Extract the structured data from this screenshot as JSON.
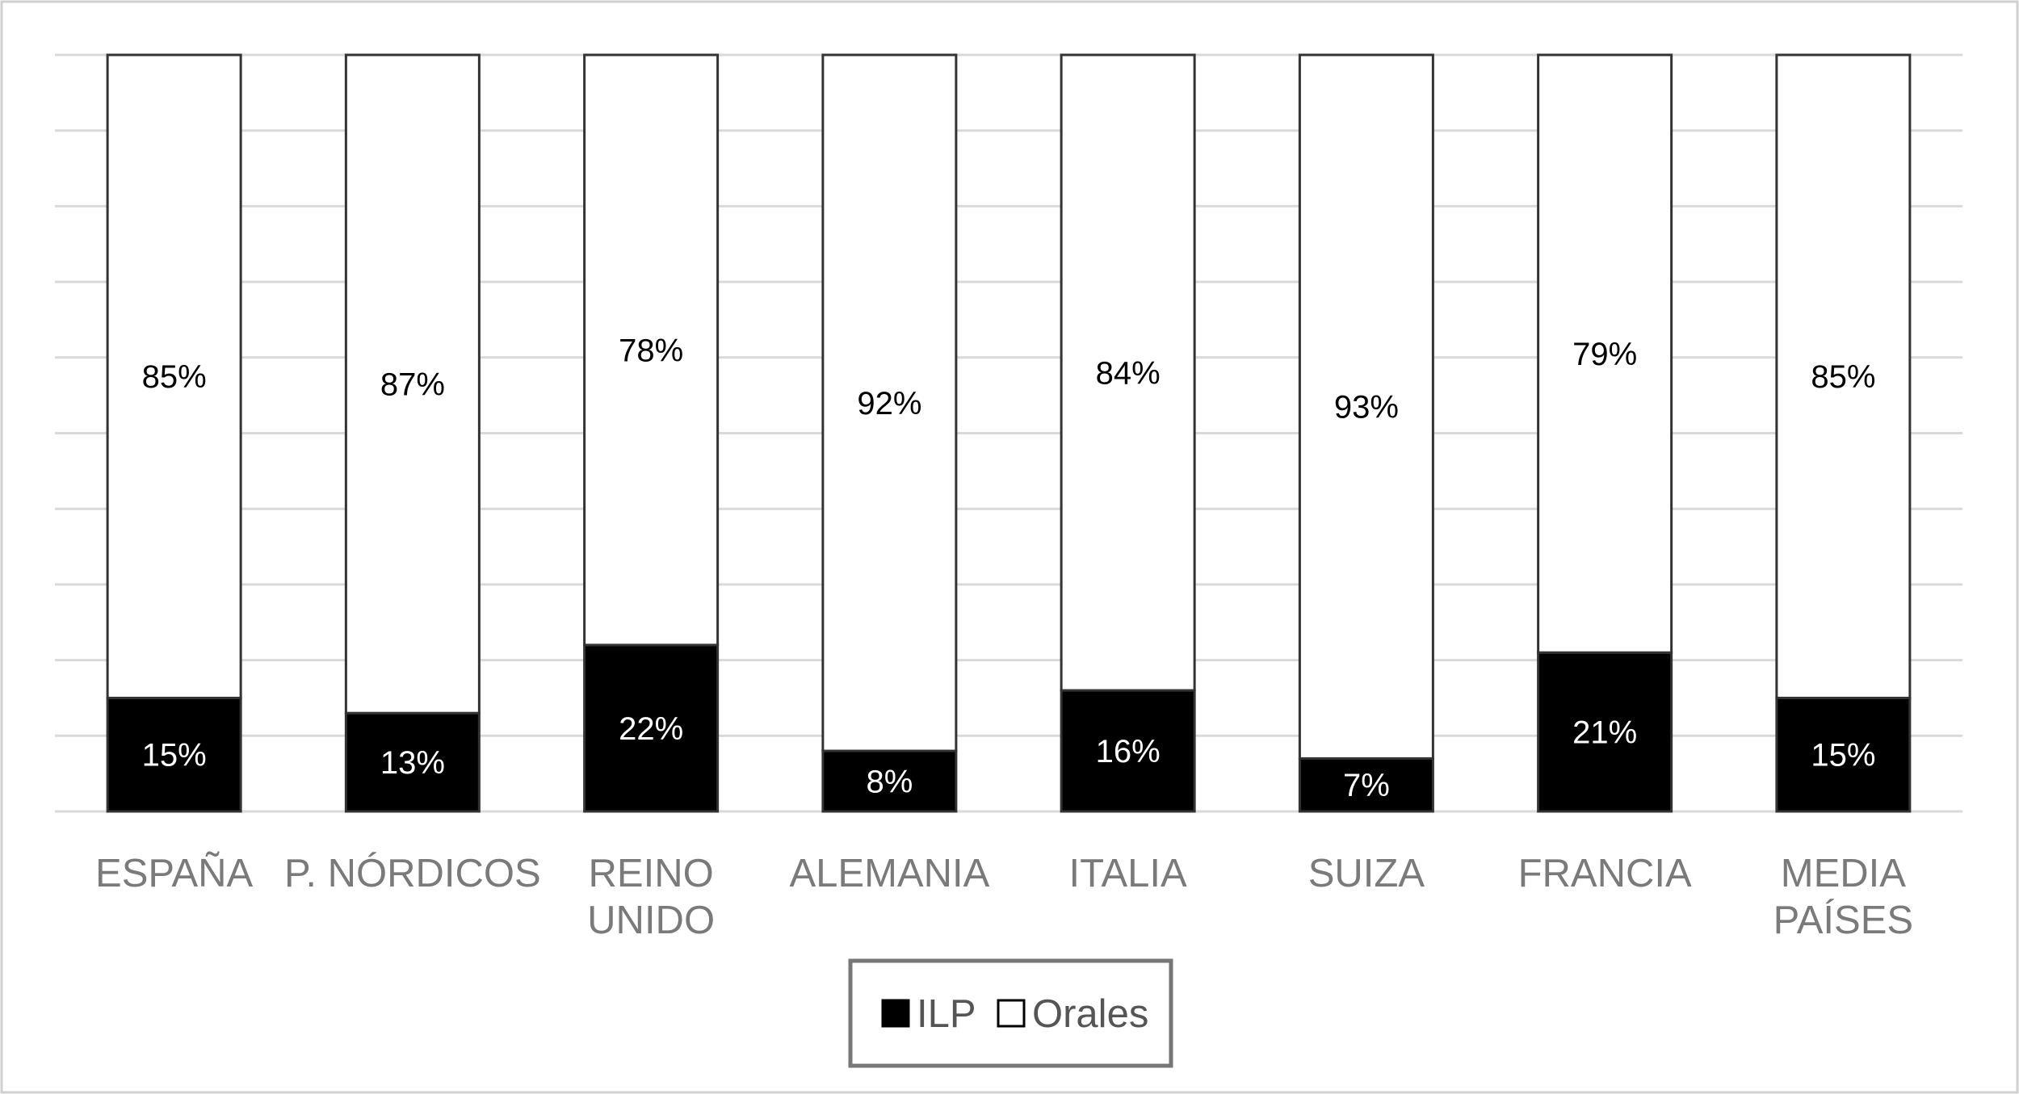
{
  "chart_data": {
    "type": "bar",
    "stacked": true,
    "percent": true,
    "categories": [
      [
        "ESPAÑA"
      ],
      [
        "P. NÓRDICOS"
      ],
      [
        "REINO",
        "UNIDO"
      ],
      [
        "ALEMANIA"
      ],
      [
        "ITALIA"
      ],
      [
        "SUIZA"
      ],
      [
        "FRANCIA"
      ],
      [
        "MEDIA",
        "PAÍSES"
      ]
    ],
    "series": [
      {
        "name": "ILP",
        "values": [
          15,
          13,
          22,
          8,
          16,
          7,
          21,
          15
        ],
        "labels": [
          "15%",
          "13%",
          "22%",
          "8%",
          "16%",
          "7%",
          "21%",
          "15%"
        ],
        "color": "#000000",
        "label_color": "#ffffff"
      },
      {
        "name": "Orales",
        "values": [
          85,
          87,
          78,
          92,
          84,
          93,
          79,
          85
        ],
        "labels": [
          "85%",
          "87%",
          "78%",
          "92%",
          "84%",
          "93%",
          "79%",
          "85%"
        ],
        "color": "#ffffff",
        "label_color": "#000000"
      }
    ],
    "ylim": [
      0,
      100
    ],
    "gridlines": 10,
    "grid": true,
    "legend_position": "bottom-center",
    "colors": {
      "grid": "#d9d9d9",
      "border": "#d0d0d0",
      "bar_outline": "#333333",
      "legend_border": "#777777"
    }
  }
}
